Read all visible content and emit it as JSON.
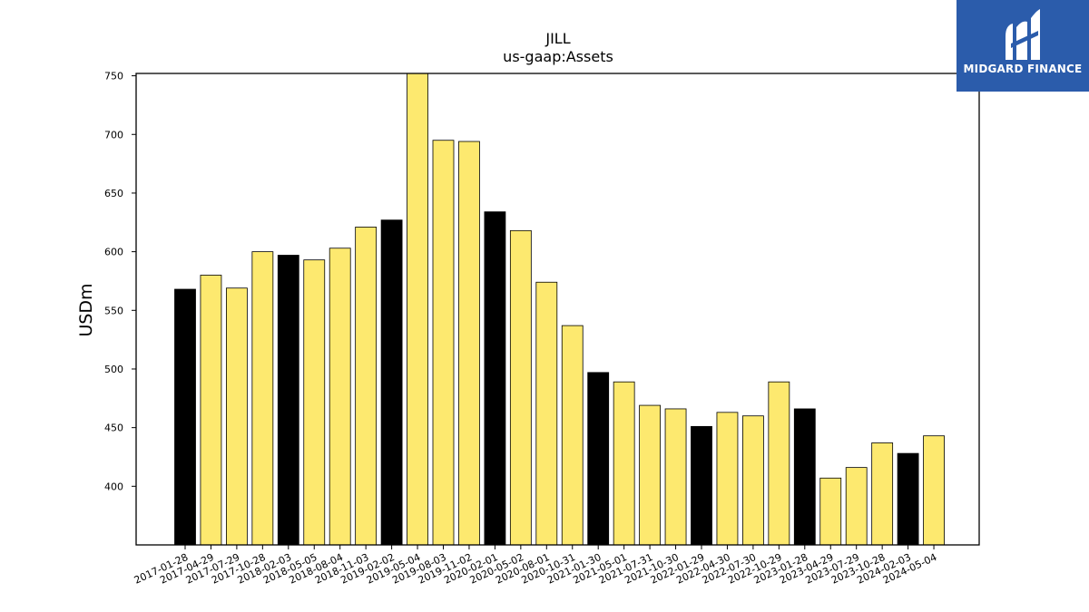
{
  "chart_data": {
    "type": "bar",
    "title": "JILL",
    "subtitle": "us-gaap:Assets",
    "xlabel": "",
    "ylabel": "USDm",
    "ylim": [
      350,
      752
    ],
    "yticks": [
      400,
      450,
      500,
      550,
      600,
      650,
      700,
      750
    ],
    "grid": false,
    "categories": [
      "2017-01-28",
      "2017-04-29",
      "2017-07-29",
      "2017-10-28",
      "2018-02-03",
      "2018-05-05",
      "2018-08-04",
      "2018-11-03",
      "2019-02-02",
      "2019-05-04",
      "2019-08-03",
      "2019-11-02",
      "2020-02-01",
      "2020-05-02",
      "2020-08-01",
      "2020-10-31",
      "2021-01-30",
      "2021-05-01",
      "2021-07-31",
      "2021-10-30",
      "2022-01-29",
      "2022-04-30",
      "2022-07-30",
      "2022-10-29",
      "2023-01-28",
      "2023-04-29",
      "2023-07-29",
      "2023-10-28",
      "2024-02-03",
      "2024-05-04"
    ],
    "values": [
      568,
      580,
      569,
      600,
      597,
      593,
      603,
      621,
      627,
      752,
      695,
      694,
      634,
      618,
      574,
      537,
      497,
      489,
      469,
      466,
      451,
      463,
      460,
      489,
      466,
      407,
      416,
      437,
      428,
      443
    ],
    "highlight": [
      true,
      false,
      false,
      false,
      true,
      false,
      false,
      false,
      true,
      false,
      false,
      false,
      true,
      false,
      false,
      false,
      true,
      false,
      false,
      false,
      true,
      false,
      false,
      false,
      true,
      false,
      false,
      false,
      true,
      false
    ],
    "colors": {
      "highlight": "#000000",
      "normal": "#fde96f",
      "edge": "#000000"
    }
  },
  "logo": {
    "text": "MIDGARD FINANCE",
    "background": "#2b5cab"
  }
}
